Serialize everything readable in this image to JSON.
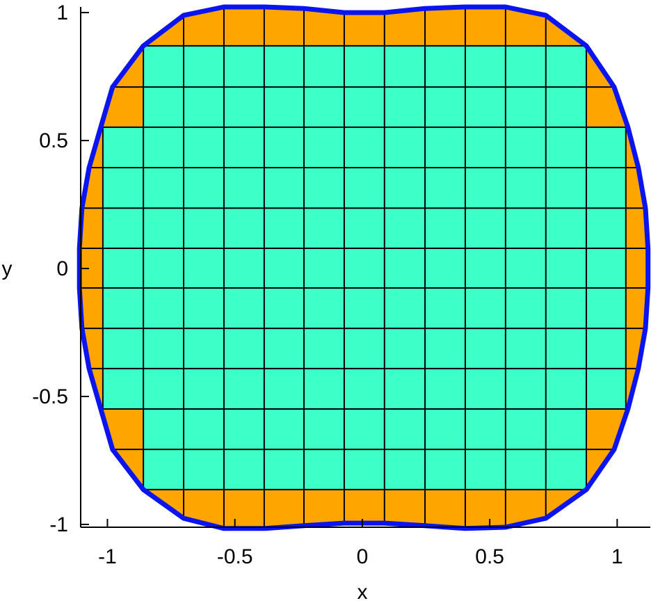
{
  "chart_data": {
    "type": "mesh",
    "xlabel": "x",
    "ylabel": "y",
    "xlim": [
      -1.105,
      1.13
    ],
    "ylim": [
      -1.011,
      1.022
    ],
    "xticks": [
      -1,
      -0.5,
      0,
      0.5,
      1
    ],
    "yticks": [
      -1,
      -0.5,
      0,
      0.5,
      1
    ],
    "outer_color": "#ffa500",
    "inner_color": "#3dffc8",
    "boundary_color": "#0a14f0",
    "grid_color": "#000000",
    "grid_x": [
      -1.018,
      -0.859,
      -0.701,
      -0.543,
      -0.385,
      -0.229,
      -0.071,
      0.087,
      0.246,
      0.404,
      0.562,
      0.72,
      0.879,
      1.034
    ],
    "grid_y": [
      0.87,
      0.709,
      0.552,
      0.394,
      0.236,
      0.079,
      -0.076,
      -0.234,
      -0.391,
      -0.549,
      -0.707,
      -0.864
    ],
    "interior": {
      "x": [
        -0.859,
        0.879,
        0.879,
        1.034,
        1.034,
        0.879,
        0.879,
        -0.859,
        -0.859,
        -1.018,
        -1.018,
        -0.859
      ],
      "y": [
        0.87,
        0.87,
        0.552,
        0.552,
        -0.549,
        -0.549,
        -0.864,
        -0.864,
        -0.549,
        -0.549,
        0.552,
        0.552
      ]
    },
    "boundary": {
      "x": [
        -0.701,
        -0.543,
        -0.385,
        -0.229,
        -0.071,
        0.087,
        0.246,
        0.404,
        0.562,
        0.72,
        0.879,
        0.988,
        1.042,
        1.083,
        1.111,
        1.121,
        1.121,
        1.111,
        1.083,
        1.042,
        0.988,
        0.879,
        0.72,
        0.562,
        0.404,
        0.246,
        0.087,
        -0.071,
        -0.229,
        -0.385,
        -0.543,
        -0.701,
        -0.859,
        -0.98,
        -1.026,
        -1.072,
        -1.1,
        -1.11,
        -1.11,
        -1.1,
        -1.072,
        -1.026,
        -0.98,
        -0.859,
        -0.701
      ],
      "y": [
        0.989,
        1.022,
        1.022,
        1.016,
        1.0,
        1.0,
        1.016,
        1.022,
        1.022,
        0.989,
        0.87,
        0.709,
        0.552,
        0.394,
        0.236,
        0.079,
        -0.076,
        -0.234,
        -0.391,
        -0.549,
        -0.707,
        -0.864,
        -0.976,
        -1.011,
        -1.016,
        -1.005,
        -0.995,
        -0.995,
        -1.005,
        -1.016,
        -1.016,
        -0.976,
        -0.864,
        -0.707,
        -0.549,
        -0.391,
        -0.234,
        -0.076,
        0.079,
        0.236,
        0.394,
        0.552,
        0.709,
        0.87,
        0.989
      ]
    }
  }
}
